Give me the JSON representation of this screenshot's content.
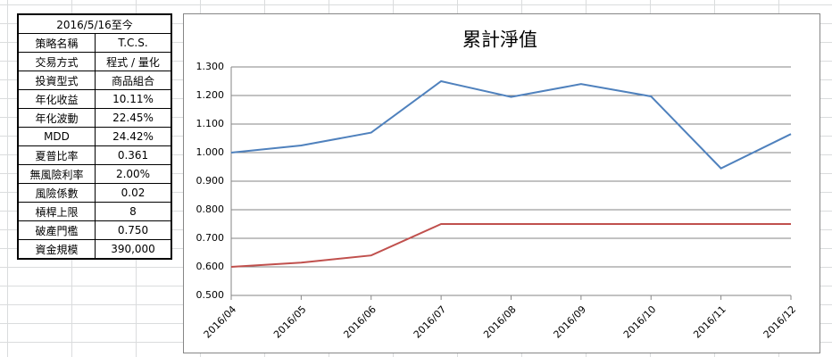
{
  "table": {
    "header": "2016/5/16至今",
    "rows": [
      [
        "策略名稱",
        "T.C.S."
      ],
      [
        "交易方式",
        "程式 / 量化"
      ],
      [
        "投資型式",
        "商品組合"
      ],
      [
        "年化收益",
        "10.11%"
      ],
      [
        "年化波動",
        "22.45%"
      ],
      [
        "MDD",
        "24.42%"
      ],
      [
        "夏普比率",
        "0.361"
      ],
      [
        "無風險利率",
        "2.00%"
      ],
      [
        "風險係數",
        "0.02"
      ],
      [
        "槓桿上限",
        "8"
      ],
      [
        "破產門檻",
        "0.750"
      ],
      [
        "資金規模",
        "390,000"
      ]
    ]
  },
  "chart_data": {
    "type": "line",
    "title": "累計淨值",
    "categories": [
      "2016/04",
      "2016/05",
      "2016/06",
      "2016/07",
      "2016/08",
      "2016/09",
      "2016/10",
      "2016/11",
      "2016/12"
    ],
    "series": [
      {
        "color": "#4f81bd",
        "values": [
          1.0,
          1.025,
          1.07,
          1.25,
          1.195,
          1.24,
          1.197,
          0.945,
          1.065
        ]
      },
      {
        "color": "#c0504d",
        "values": [
          0.6,
          0.615,
          0.64,
          0.75,
          0.75,
          0.75,
          0.75,
          0.75,
          0.75
        ]
      }
    ],
    "ylim": [
      0.5,
      1.3
    ],
    "yticks": [
      {
        "value": 0.5,
        "label": "0.500"
      },
      {
        "value": 0.6,
        "label": "0.600"
      },
      {
        "value": 0.7,
        "label": "0.700"
      },
      {
        "value": 0.8,
        "label": "0.800"
      },
      {
        "value": 0.9,
        "label": "0.900"
      },
      {
        "value": 1.0,
        "label": "1.000"
      },
      {
        "value": 1.1,
        "label": "1.100"
      },
      {
        "value": 1.2,
        "label": "1.200"
      },
      {
        "value": 1.3,
        "label": "1.300"
      }
    ],
    "grid": true
  }
}
